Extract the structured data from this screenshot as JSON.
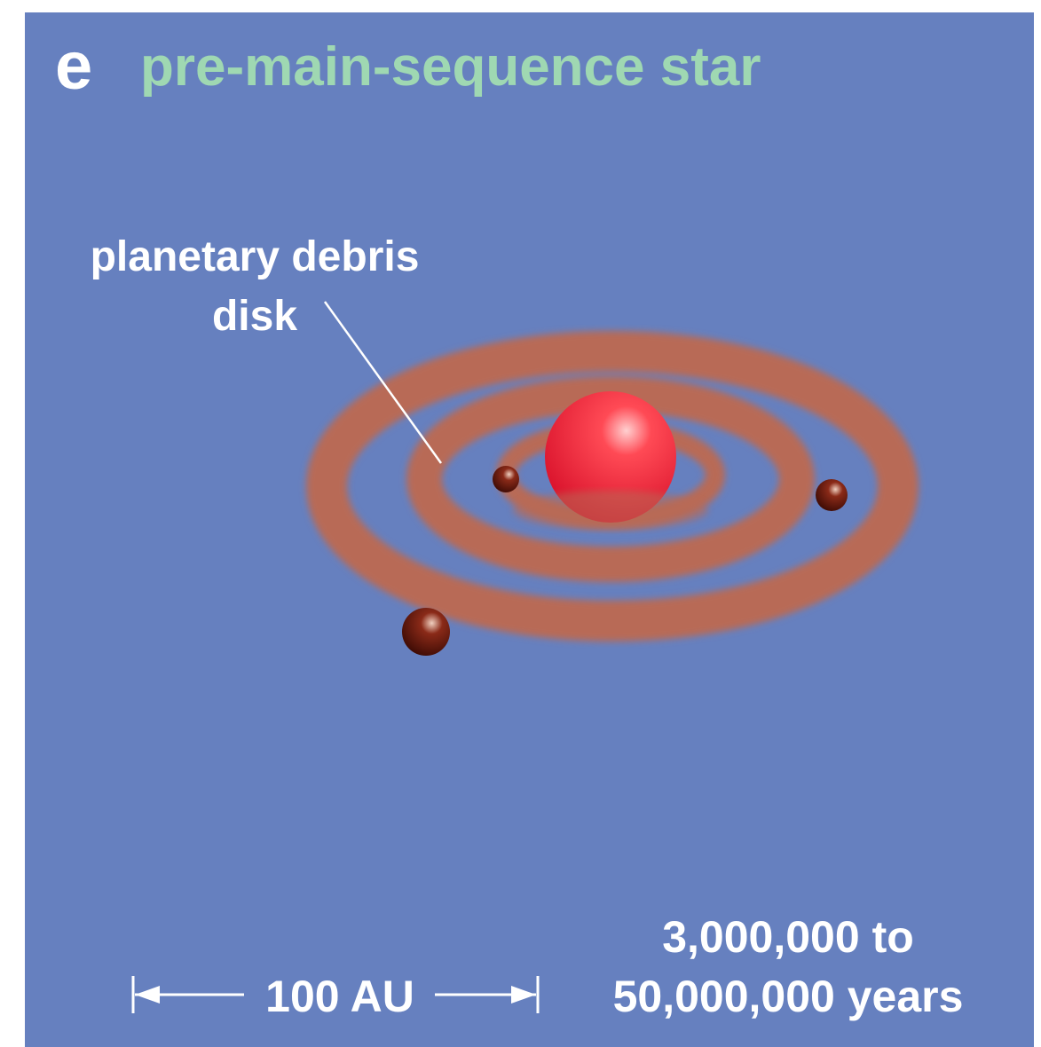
{
  "panel": {
    "letter": "e",
    "title": "pre-main-sequence star"
  },
  "label": {
    "lines": [
      "planetary debris",
      "disk"
    ]
  },
  "scale": {
    "label": "100 AU"
  },
  "age": {
    "lines": [
      "3,000,000 to",
      "50,000,000 years"
    ]
  }
}
